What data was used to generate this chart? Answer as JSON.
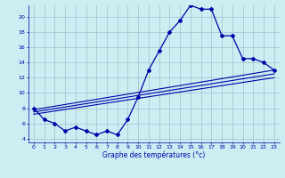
{
  "title": "Graphe des températures (°c)",
  "bg_color": "#cceef2",
  "grid_color": "#aabbcc",
  "line_color": "#0000aa",
  "xlim": [
    -0.5,
    23.5
  ],
  "ylim": [
    3.5,
    21.5
  ],
  "xticks": [
    0,
    1,
    2,
    3,
    4,
    5,
    6,
    7,
    8,
    9,
    10,
    11,
    12,
    13,
    14,
    15,
    16,
    17,
    18,
    19,
    20,
    21,
    22,
    23
  ],
  "yticks": [
    4,
    6,
    8,
    10,
    12,
    14,
    16,
    18,
    20
  ],
  "temp_x": [
    0,
    1,
    2,
    3,
    4,
    5,
    6,
    7,
    8,
    9,
    10,
    11,
    12,
    13,
    14,
    15,
    16,
    17,
    18,
    19,
    20,
    21,
    22,
    23
  ],
  "temp_y": [
    8.0,
    6.5,
    6.0,
    5.0,
    5.5,
    5.0,
    4.5,
    5.0,
    4.5,
    6.5,
    9.5,
    13.0,
    15.5,
    18.0,
    19.5,
    21.5,
    21.0,
    21.0,
    17.5,
    17.5,
    14.5,
    14.5,
    14.0,
    13.0
  ],
  "line1_x": [
    0,
    23
  ],
  "line1_y": [
    7.8,
    13.0
  ],
  "line2_x": [
    0,
    23
  ],
  "line2_y": [
    7.5,
    12.5
  ],
  "line3_x": [
    0,
    23
  ],
  "line3_y": [
    7.2,
    12.0
  ]
}
